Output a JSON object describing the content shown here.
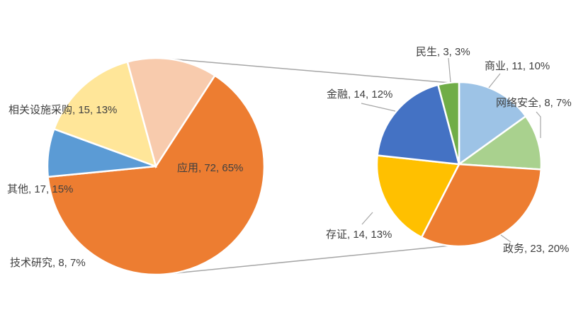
{
  "chart_data": {
    "type": "pie",
    "subtype": "pie-of-pie",
    "title": "",
    "primary": {
      "slices": [
        {
          "name": "应用",
          "value": 72,
          "percent": "65%",
          "color": "#ED7D31",
          "label": "应用, 72, 65%",
          "breakout": true
        },
        {
          "name": "技术研究",
          "value": 8,
          "percent": "7%",
          "color": "#5B9BD5",
          "label": "技术研究, 8, 7%"
        },
        {
          "name": "其他",
          "value": 17,
          "percent": "15%",
          "color": "#FFE699",
          "label": "其他, 17, 15%"
        },
        {
          "name": "相关设施采购",
          "value": 15,
          "percent": "13%",
          "color": "#F8CBAD",
          "label": "相关设施采购, 15, 13%"
        }
      ]
    },
    "secondary": {
      "slices": [
        {
          "name": "商业",
          "value": 11,
          "percent": "10%",
          "color": "#9DC3E6",
          "label": "商业, 11, 10%"
        },
        {
          "name": "网络安全",
          "value": 8,
          "percent": "7%",
          "color": "#A9D18E",
          "label": "网络安全, 8, 7%"
        },
        {
          "name": "政务",
          "value": 23,
          "percent": "20%",
          "color": "#ED7D31",
          "label": "政务, 23, 20%"
        },
        {
          "name": "存证",
          "value": 14,
          "percent": "13%",
          "color": "#FFC000",
          "label": "存证, 14, 13%"
        },
        {
          "name": "金融",
          "value": 14,
          "percent": "12%",
          "color": "#4472C4",
          "label": "金融, 14, 12%"
        },
        {
          "name": "民生",
          "value": 3,
          "percent": "3%",
          "color": "#70AD47",
          "label": "民生, 3, 3%"
        }
      ]
    },
    "legend": "none"
  }
}
